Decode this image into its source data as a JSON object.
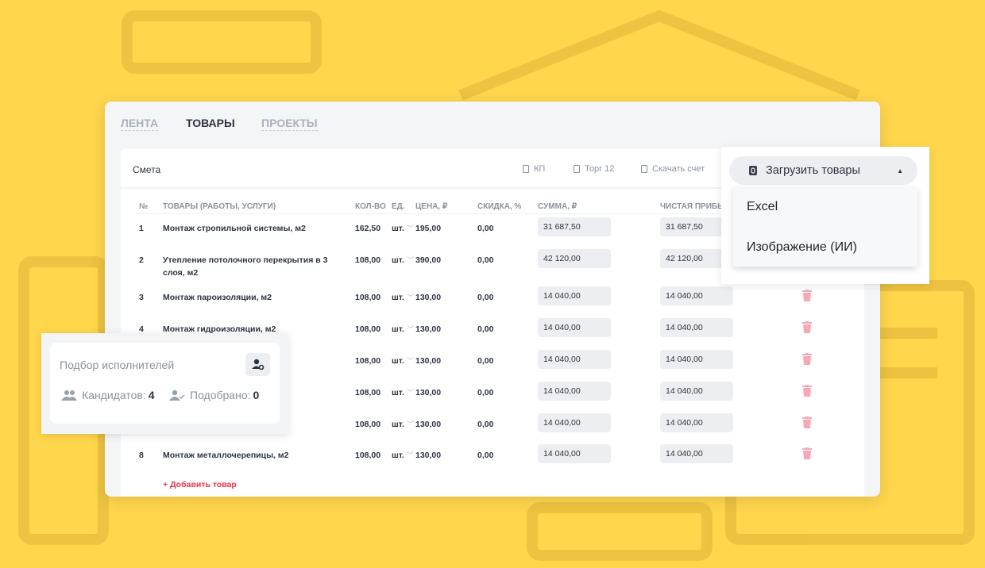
{
  "tabs": [
    {
      "label": "ЛЕНТА"
    },
    {
      "label": "ТОВАРЫ"
    },
    {
      "label": "ПРОЕКТЫ"
    }
  ],
  "card": {
    "title": "Смета",
    "tools": [
      "КП",
      "Торг 12",
      "Скачать счет"
    ]
  },
  "columns": [
    "№",
    "ТОВАРЫ (РАБОТЫ, УСЛУГИ)",
    "КОЛ-ВО",
    "ЕД.",
    "ЦЕНА, ₽",
    "СКИДКА, %",
    "СУММА, ₽",
    "ЧИСТАЯ ПРИБЫ"
  ],
  "rows": [
    {
      "n": "1",
      "name": "Монтаж стропильной системы, м2",
      "qty": "162,50",
      "unit": "шт.",
      "price": "195,00",
      "disc": "0,00",
      "sum": "31 687,50",
      "profit": "31 687,50"
    },
    {
      "n": "2",
      "name": "Утепление потолочного перекрытия в 3 слоя, м2",
      "qty": "108,00",
      "unit": "шт.",
      "price": "390,00",
      "disc": "0,00",
      "sum": "42 120,00",
      "profit": "42 120,00"
    },
    {
      "n": "3",
      "name": "Монтаж пароизоляции, м2",
      "qty": "108,00",
      "unit": "шт.",
      "price": "130,00",
      "disc": "0,00",
      "sum": "14 040,00",
      "profit": "14 040,00"
    },
    {
      "n": "4",
      "name": "Монтаж гидроизоляции, м2",
      "qty": "108,00",
      "unit": "шт.",
      "price": "130,00",
      "disc": "0,00",
      "sum": "14 040,00",
      "profit": "14 040,00"
    },
    {
      "n": "",
      "name": "",
      "qty": "108,00",
      "unit": "шт.",
      "price": "130,00",
      "disc": "0,00",
      "sum": "14 040,00",
      "profit": "14 040,00"
    },
    {
      "n": "",
      "name": "",
      "qty": "108,00",
      "unit": "шт.",
      "price": "130,00",
      "disc": "0,00",
      "sum": "14 040,00",
      "profit": "14 040,00"
    },
    {
      "n": "",
      "name": "",
      "qty": "108,00",
      "unit": "шт.",
      "price": "130,00",
      "disc": "0,00",
      "sum": "14 040,00",
      "profit": "14 040,00"
    },
    {
      "n": "8",
      "name": "Монтаж металлочерепицы, м2",
      "qty": "108,00",
      "unit": "шт.",
      "price": "130,00",
      "disc": "0,00",
      "sum": "14 040,00",
      "profit": "14 040,00"
    }
  ],
  "add_label": "+ Добавить товар",
  "upload": {
    "label": "Загрузить товары",
    "options": [
      "Excel",
      "Изображение (ИИ)"
    ]
  },
  "selection": {
    "title": "Подбор исполнителей",
    "candidates_label": "Кандидатов:",
    "candidates": "4",
    "picked_label": "Подобрано:",
    "picked": "0"
  },
  "colors": {
    "background": "#FFD64C",
    "accent": "#f0304d"
  }
}
